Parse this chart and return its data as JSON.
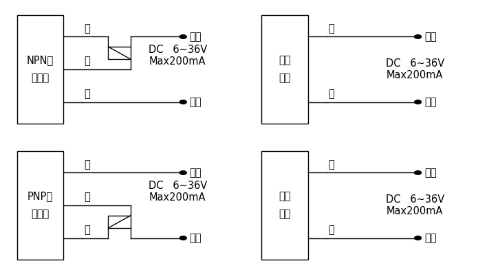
{
  "bg_color": "#ffffff",
  "line_color": "#000000",
  "lw": 1.0,
  "fig_w": 7.11,
  "fig_h": 3.96,
  "dpi": 100,
  "font_size": 10.5,
  "diagrams": [
    {
      "id": "NPN",
      "box_label": "NPN型\n传感器",
      "type": "sensor_npn",
      "bx": 0.082,
      "by": 0.745,
      "bw": 0.095,
      "bh": 0.4
    },
    {
      "id": "emitter1",
      "box_label": "激光\n发射",
      "type": "emitter",
      "bx": 0.582,
      "by": 0.745,
      "bw": 0.095,
      "bh": 0.4
    },
    {
      "id": "PNP",
      "box_label": "PNP型\n传感器",
      "type": "sensor_pnp",
      "bx": 0.082,
      "by": 0.245,
      "bw": 0.095,
      "bh": 0.4
    },
    {
      "id": "emitter2",
      "box_label": "激光\n发射",
      "type": "emitter",
      "bx": 0.582,
      "by": 0.245,
      "bw": 0.095,
      "bh": 0.4
    }
  ],
  "wire_labels": {
    "top": "棕",
    "mid": "黑",
    "bot": "兰",
    "pos": "正极",
    "neg": "负极"
  },
  "dc_text": "DC   6~36V\nMax200mA"
}
